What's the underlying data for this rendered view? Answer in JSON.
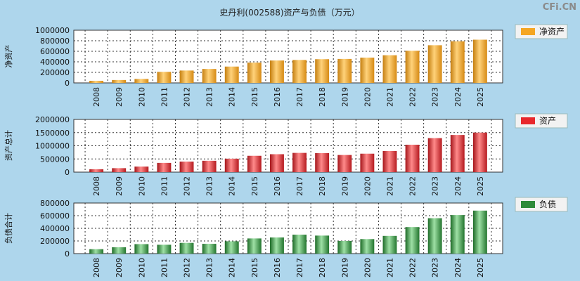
{
  "title": "史丹利(002588)资产与负债（万元）",
  "watermark": "CFi.CN",
  "colors": {
    "net_assets": "#f5a623",
    "assets": "#e8282c",
    "liabilities": "#2e8b3a"
  },
  "chart_data": [
    {
      "type": "bar",
      "ylabel": "净资产",
      "categories": [
        "2008",
        "2009",
        "2010",
        "2011",
        "2012",
        "2013",
        "2014",
        "2015",
        "2016",
        "2017",
        "2018",
        "2019",
        "2020",
        "2021",
        "2022",
        "2023",
        "2024",
        "2025"
      ],
      "ylim": [
        0,
        1000000
      ],
      "yticks": [
        0,
        200000,
        400000,
        600000,
        800000,
        1000000
      ],
      "grid": true,
      "legend_position": "top-right",
      "series": [
        {
          "name": "净资产",
          "values": [
            40000,
            55000,
            75000,
            210000,
            235000,
            265000,
            310000,
            385000,
            425000,
            435000,
            450000,
            455000,
            480000,
            525000,
            610000,
            715000,
            790000,
            820000
          ]
        }
      ]
    },
    {
      "type": "bar",
      "ylabel": "资产总计",
      "categories": [
        "2008",
        "2009",
        "2010",
        "2011",
        "2012",
        "2013",
        "2014",
        "2015",
        "2016",
        "2017",
        "2018",
        "2019",
        "2020",
        "2021",
        "2022",
        "2023",
        "2024",
        "2025"
      ],
      "ylim": [
        0,
        2000000
      ],
      "yticks": [
        0,
        500000,
        1000000,
        1500000,
        2000000
      ],
      "grid": true,
      "legend_position": "top-right",
      "series": [
        {
          "name": "资产",
          "values": [
            110000,
            150000,
            210000,
            350000,
            400000,
            430000,
            510000,
            620000,
            680000,
            730000,
            720000,
            650000,
            700000,
            800000,
            1040000,
            1290000,
            1410000,
            1500000
          ]
        }
      ]
    },
    {
      "type": "bar",
      "ylabel": "负债合计",
      "categories": [
        "2008",
        "2009",
        "2010",
        "2011",
        "2012",
        "2013",
        "2014",
        "2015",
        "2016",
        "2017",
        "2018",
        "2019",
        "2020",
        "2021",
        "2022",
        "2023",
        "2024",
        "2025"
      ],
      "ylim": [
        0,
        800000
      ],
      "yticks": [
        0,
        200000,
        400000,
        600000,
        800000
      ],
      "grid": true,
      "legend_position": "top-right",
      "series": [
        {
          "name": "负债",
          "values": [
            70000,
            100000,
            150000,
            140000,
            170000,
            155000,
            195000,
            240000,
            255000,
            300000,
            285000,
            200000,
            230000,
            280000,
            420000,
            560000,
            610000,
            680000
          ]
        }
      ]
    }
  ]
}
